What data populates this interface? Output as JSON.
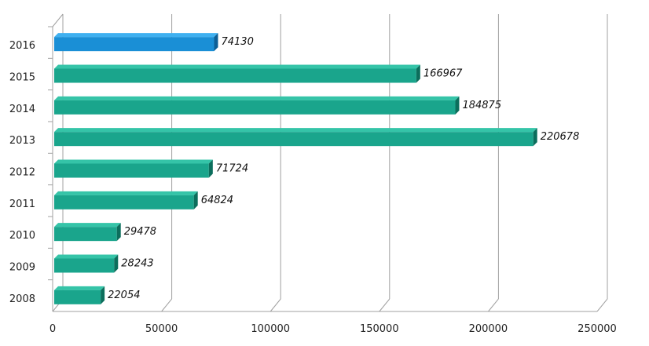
{
  "chart_data": {
    "type": "bar",
    "orientation": "horizontal",
    "three_d": true,
    "categories": [
      "2008",
      "2009",
      "2010",
      "2011",
      "2012",
      "2013",
      "2014",
      "2015",
      "2016"
    ],
    "values": [
      22054,
      28243,
      29478,
      64824,
      71724,
      220678,
      184875,
      166967,
      74130
    ],
    "data_labels": [
      "22054",
      "28243",
      "29478",
      "64824",
      "71724",
      "220678",
      "184875",
      "166967",
      "74130"
    ],
    "x_ticks": [
      "0",
      "50000",
      "100000",
      "150000",
      "200000",
      "250000"
    ],
    "xlim": [
      0,
      250000
    ],
    "grid": true,
    "colors": {
      "default_bar": "#1aa58c",
      "default_bar_top": "#35c4a8",
      "default_bar_side": "#0c6e5c",
      "highlight_bar": "#1a8fd6",
      "highlight_bar_top": "#3fb0f0",
      "highlight_bar_side": "#0d5f96",
      "gridline": "#a0a0a0"
    },
    "highlight_category": "2016"
  }
}
